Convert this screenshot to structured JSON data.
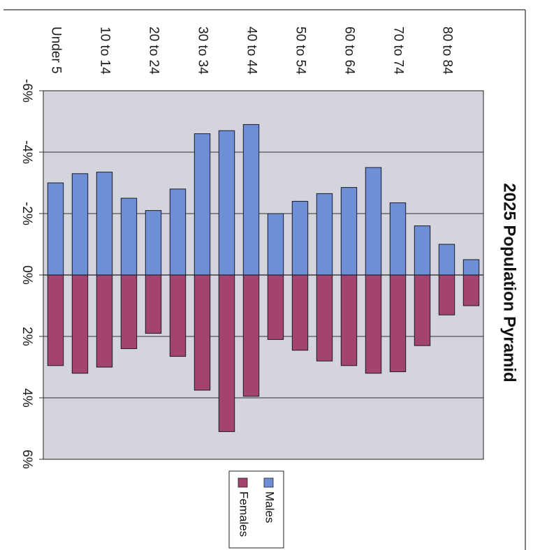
{
  "chart_data": {
    "type": "bar",
    "orientation": "rotated-90-clockwise",
    "title": "2025 Population Pyramid",
    "categories": [
      "Under 5",
      "",
      "10 to 14",
      "",
      "20 to 24",
      "",
      "30 to 34",
      "",
      "40 to 44",
      "",
      "50 to 54",
      "",
      "60 to 64",
      "",
      "70 to 74",
      "",
      "80 to 84",
      ""
    ],
    "series": [
      {
        "name": "Males",
        "color": "#6e8fd6",
        "values": [
          -3.0,
          -3.3,
          -3.35,
          -2.5,
          -2.1,
          -2.8,
          -4.6,
          -4.7,
          -4.9,
          -2.0,
          -2.4,
          -2.65,
          -2.85,
          -3.5,
          -2.35,
          -1.6,
          -1.0,
          -0.5
        ]
      },
      {
        "name": "Females",
        "color": "#a3446e",
        "values": [
          2.95,
          3.2,
          3.0,
          2.4,
          1.9,
          2.65,
          3.75,
          5.1,
          3.95,
          2.1,
          2.45,
          2.8,
          2.95,
          3.2,
          3.15,
          2.3,
          1.3,
          1.0
        ]
      }
    ],
    "value_axis": {
      "range": [
        -6,
        6
      ],
      "ticks": [
        -6,
        -4,
        -2,
        0,
        2,
        4,
        6
      ],
      "tick_labels": [
        "-6%",
        "-4%",
        "-2%",
        "0%",
        "2%",
        "4%",
        "6%"
      ]
    },
    "grid": true,
    "legend_placement": "bottom",
    "plot_background": "#d4d4dc"
  }
}
